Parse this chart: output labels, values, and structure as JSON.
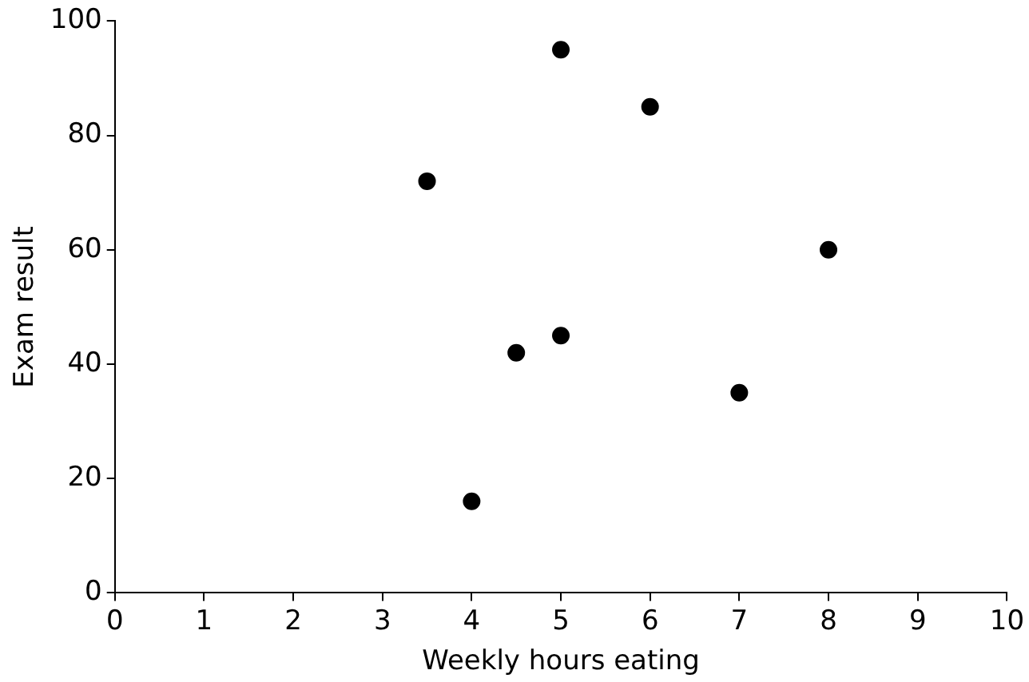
{
  "chart_data": {
    "type": "scatter",
    "xlabel": "Weekly hours eating",
    "ylabel": "Exam result",
    "x": [
      3.5,
      4,
      4.5,
      5,
      5,
      6,
      7,
      8
    ],
    "values": [
      72,
      16,
      42,
      95,
      45,
      85,
      35,
      60
    ],
    "color": "#000000",
    "marker": "circle",
    "xlim": [
      0,
      10
    ],
    "xticks": [
      0,
      1,
      2,
      3,
      4,
      5,
      6,
      7,
      8,
      9,
      10
    ],
    "ylim": [
      0,
      100
    ],
    "yticks": [
      0,
      20,
      40,
      60,
      80,
      100
    ],
    "grid": false,
    "legend": false
  }
}
